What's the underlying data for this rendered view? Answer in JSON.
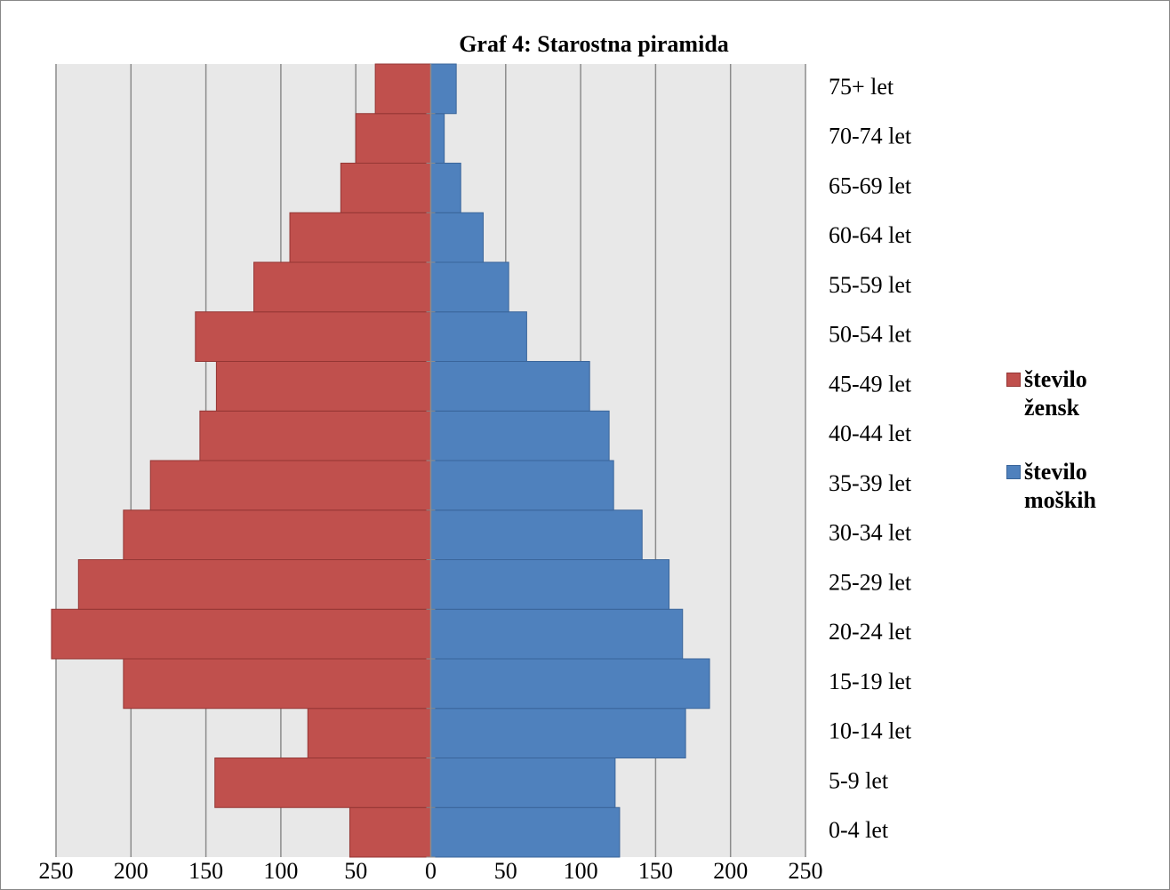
{
  "chart_data": {
    "type": "pyramid",
    "title": "Graf 4: Starostna piramida",
    "categories": [
      "0-4 let",
      "5-9 let",
      "10-14 let",
      "15-19 let",
      "20-24 let",
      "25-29 let",
      "30-34 let",
      "35-39 let",
      "40-44 let",
      "45-49 let",
      "50-54 let",
      "55-59 let",
      "60-64 let",
      "65-69 let",
      "70-74 let",
      "75+ let"
    ],
    "series": [
      {
        "name": "število žensk",
        "color": "#c0504d",
        "values": [
          -54,
          -144,
          -82,
          -205,
          -253,
          -235,
          -205,
          -187,
          -154,
          -143,
          -157,
          -118,
          -94,
          -60,
          -50,
          -37
        ]
      },
      {
        "name": "število moških",
        "color": "#4f81bd",
        "values": [
          126,
          123,
          170,
          186,
          168,
          159,
          141,
          122,
          119,
          106,
          64,
          52,
          35,
          20,
          9,
          17
        ]
      }
    ],
    "xlim": [
      -250,
      250
    ],
    "xticks": [
      {
        "value": -250,
        "label": "250"
      },
      {
        "value": -200,
        "label": "200"
      },
      {
        "value": -150,
        "label": "150"
      },
      {
        "value": -100,
        "label": "100"
      },
      {
        "value": -50,
        "label": "50"
      },
      0,
      50,
      100,
      150,
      200,
      250
    ],
    "grid": true
  }
}
